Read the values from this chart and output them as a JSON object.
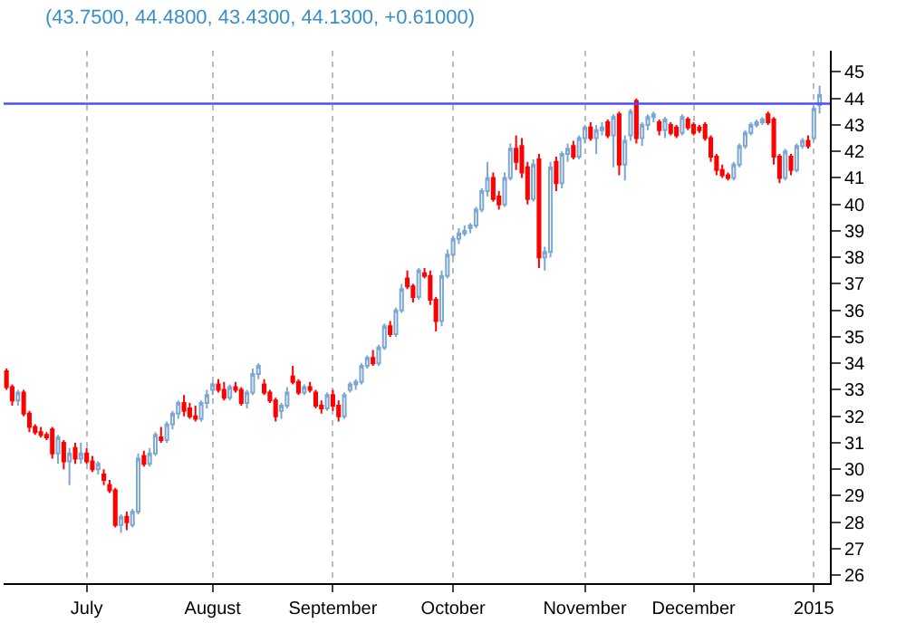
{
  "chart_data": {
    "type": "candlestick",
    "title": "(43.7500, 44.4800, 43.4300, 44.1300, +0.61000)",
    "categories": [
      null,
      null,
      null,
      null,
      null,
      null,
      null,
      null,
      null,
      null,
      null,
      null,
      null,
      null,
      "July",
      null,
      null,
      null,
      null,
      null,
      null,
      null,
      null,
      null,
      null,
      null,
      null,
      null,
      null,
      null,
      null,
      null,
      null,
      null,
      null,
      null,
      "August",
      null,
      null,
      null,
      null,
      null,
      null,
      null,
      null,
      null,
      null,
      null,
      null,
      null,
      null,
      null,
      null,
      null,
      null,
      null,
      null,
      "September",
      null,
      null,
      null,
      null,
      null,
      null,
      null,
      null,
      null,
      null,
      null,
      null,
      null,
      null,
      null,
      null,
      null,
      null,
      null,
      null,
      "October",
      null,
      null,
      null,
      null,
      null,
      null,
      null,
      null,
      null,
      null,
      null,
      null,
      null,
      null,
      null,
      null,
      null,
      null,
      null,
      null,
      null,
      null,
      "November",
      null,
      null,
      null,
      null,
      null,
      null,
      null,
      null,
      null,
      null,
      null,
      null,
      null,
      null,
      null,
      null,
      null,
      null,
      "December",
      null,
      null,
      null,
      null,
      null,
      null,
      null,
      null,
      null,
      null,
      null,
      null,
      null,
      null,
      null,
      null,
      null,
      null,
      null,
      null,
      "2015",
      null
    ],
    "ohlc": [
      [
        33.7,
        33.8,
        33.0,
        33.1
      ],
      [
        33.1,
        33.2,
        32.4,
        32.6
      ],
      [
        32.6,
        33.0,
        32.4,
        32.9
      ],
      [
        32.9,
        33.0,
        32.0,
        32.1
      ],
      [
        32.1,
        32.2,
        31.4,
        31.6
      ],
      [
        31.6,
        31.7,
        31.3,
        31.4
      ],
      [
        31.4,
        31.6,
        31.2,
        31.3
      ],
      [
        31.3,
        31.4,
        31.1,
        31.2
      ],
      [
        31.5,
        31.6,
        30.4,
        30.6
      ],
      [
        30.6,
        31.3,
        30.2,
        31.2
      ],
      [
        31.0,
        31.1,
        30.0,
        30.3
      ],
      [
        30.3,
        30.8,
        29.4,
        30.6
      ],
      [
        30.8,
        31.0,
        30.2,
        30.4
      ],
      [
        30.4,
        31.0,
        30.2,
        30.6
      ],
      [
        30.6,
        30.8,
        30.2,
        30.3
      ],
      [
        30.3,
        30.5,
        29.9,
        30.0
      ],
      [
        30.0,
        30.3,
        29.8,
        30.2
      ],
      [
        29.8,
        30.0,
        29.4,
        29.6
      ],
      [
        29.4,
        29.6,
        29.1,
        29.2
      ],
      [
        29.2,
        29.3,
        27.8,
        27.9
      ],
      [
        27.9,
        28.3,
        27.6,
        28.2
      ],
      [
        28.2,
        28.4,
        27.7,
        28.0
      ],
      [
        27.9,
        28.5,
        27.8,
        28.4
      ],
      [
        28.4,
        30.6,
        28.3,
        30.4
      ],
      [
        30.5,
        30.7,
        30.1,
        30.2
      ],
      [
        30.2,
        30.8,
        30.1,
        30.6
      ],
      [
        30.6,
        31.4,
        30.5,
        31.3
      ],
      [
        31.2,
        31.6,
        31.0,
        31.1
      ],
      [
        31.1,
        31.8,
        31.0,
        31.7
      ],
      [
        31.7,
        32.2,
        31.5,
        32.1
      ],
      [
        32.1,
        32.6,
        31.9,
        32.5
      ],
      [
        32.5,
        32.8,
        32.0,
        32.2
      ],
      [
        32.3,
        32.5,
        31.9,
        32.0
      ],
      [
        32.0,
        32.4,
        31.8,
        31.9
      ],
      [
        31.9,
        32.6,
        31.8,
        32.5
      ],
      [
        32.5,
        33.0,
        32.3,
        32.8
      ],
      [
        33.0,
        33.3,
        32.8,
        33.2
      ],
      [
        33.2,
        33.4,
        32.9,
        33.0
      ],
      [
        33.0,
        33.3,
        32.6,
        32.7
      ],
      [
        32.7,
        33.2,
        32.6,
        33.1
      ],
      [
        33.1,
        33.3,
        32.9,
        33.0
      ],
      [
        33.0,
        33.1,
        32.4,
        32.5
      ],
      [
        32.5,
        33.0,
        32.3,
        32.9
      ],
      [
        32.9,
        33.8,
        32.8,
        33.6
      ],
      [
        33.6,
        34.0,
        33.4,
        33.9
      ],
      [
        33.2,
        33.4,
        32.8,
        32.9
      ],
      [
        32.9,
        33.0,
        32.5,
        32.6
      ],
      [
        32.6,
        32.7,
        31.8,
        32.0
      ],
      [
        32.2,
        32.5,
        31.9,
        32.4
      ],
      [
        32.4,
        33.1,
        32.3,
        32.9
      ],
      [
        33.5,
        33.9,
        33.2,
        33.3
      ],
      [
        33.3,
        33.4,
        32.8,
        32.9
      ],
      [
        32.9,
        33.2,
        32.8,
        33.1
      ],
      [
        33.1,
        33.3,
        32.9,
        33.0
      ],
      [
        32.9,
        33.0,
        32.3,
        32.4
      ],
      [
        32.4,
        32.6,
        32.1,
        32.3
      ],
      [
        32.3,
        32.9,
        32.2,
        32.8
      ],
      [
        32.8,
        33.0,
        32.2,
        32.4
      ],
      [
        32.4,
        32.6,
        31.8,
        32.0
      ],
      [
        32.0,
        32.9,
        31.9,
        32.8
      ],
      [
        33.0,
        33.3,
        32.9,
        33.2
      ],
      [
        33.2,
        33.4,
        33.0,
        33.3
      ],
      [
        33.3,
        34.0,
        33.2,
        33.9
      ],
      [
        33.9,
        34.3,
        33.8,
        34.2
      ],
      [
        34.2,
        34.5,
        33.9,
        34.0
      ],
      [
        34.0,
        34.7,
        33.9,
        34.6
      ],
      [
        34.6,
        35.5,
        34.5,
        35.4
      ],
      [
        35.4,
        35.6,
        35.0,
        35.1
      ],
      [
        35.1,
        36.1,
        35.0,
        36.0
      ],
      [
        36.0,
        37.0,
        35.9,
        36.8
      ],
      [
        37.2,
        37.5,
        36.8,
        36.9
      ],
      [
        36.9,
        37.0,
        36.3,
        36.5
      ],
      [
        36.5,
        37.6,
        36.4,
        37.5
      ],
      [
        37.4,
        37.6,
        37.2,
        37.3
      ],
      [
        37.3,
        37.5,
        36.2,
        36.4
      ],
      [
        36.4,
        36.5,
        35.2,
        35.6
      ],
      [
        35.6,
        37.5,
        35.4,
        37.3
      ],
      [
        37.3,
        38.3,
        37.2,
        38.1
      ],
      [
        38.1,
        38.8,
        38.0,
        38.7
      ],
      [
        38.7,
        39.1,
        38.5,
        38.9
      ],
      [
        38.9,
        39.2,
        38.8,
        39.0
      ],
      [
        39.1,
        39.3,
        38.9,
        39.2
      ],
      [
        39.2,
        39.9,
        39.1,
        39.8
      ],
      [
        39.8,
        40.6,
        39.7,
        40.5
      ],
      [
        40.5,
        41.6,
        40.3,
        41.0
      ],
      [
        41.0,
        41.2,
        40.1,
        40.2
      ],
      [
        40.3,
        40.5,
        39.8,
        40.0
      ],
      [
        40.0,
        41.2,
        39.9,
        41.0
      ],
      [
        41.0,
        42.3,
        40.9,
        42.1
      ],
      [
        42.1,
        42.6,
        41.3,
        41.6
      ],
      [
        42.2,
        42.5,
        41.0,
        41.2
      ],
      [
        41.4,
        41.6,
        40.0,
        40.2
      ],
      [
        40.2,
        41.7,
        40.1,
        41.5
      ],
      [
        41.7,
        41.9,
        37.6,
        38.0
      ],
      [
        38.0,
        38.4,
        37.5,
        38.2
      ],
      [
        38.2,
        41.6,
        38.0,
        41.4
      ],
      [
        41.6,
        41.8,
        40.5,
        40.8
      ],
      [
        40.8,
        42.0,
        40.6,
        41.9
      ],
      [
        41.9,
        42.3,
        41.6,
        42.1
      ],
      [
        42.2,
        42.4,
        41.7,
        41.8
      ],
      [
        41.8,
        42.6,
        41.7,
        42.5
      ],
      [
        42.5,
        43.0,
        42.3,
        42.9
      ],
      [
        42.9,
        43.1,
        42.4,
        42.5
      ],
      [
        42.5,
        43.0,
        41.9,
        42.8
      ],
      [
        42.8,
        43.1,
        42.6,
        42.9
      ],
      [
        43.1,
        43.2,
        42.5,
        42.6
      ],
      [
        42.6,
        43.4,
        41.4,
        43.3
      ],
      [
        43.4,
        43.5,
        41.1,
        41.5
      ],
      [
        41.5,
        42.6,
        40.9,
        42.4
      ],
      [
        42.6,
        43.6,
        42.4,
        43.5
      ],
      [
        43.9,
        44.0,
        42.3,
        42.5
      ],
      [
        42.5,
        43.1,
        42.2,
        43.0
      ],
      [
        43.0,
        43.4,
        42.8,
        43.3
      ],
      [
        43.3,
        43.5,
        43.1,
        43.4
      ],
      [
        43.1,
        43.2,
        42.6,
        42.8
      ],
      [
        42.8,
        43.3,
        42.5,
        43.2
      ],
      [
        43.0,
        43.1,
        42.6,
        42.7
      ],
      [
        42.9,
        43.0,
        42.5,
        42.6
      ],
      [
        42.7,
        43.4,
        42.6,
        43.3
      ],
      [
        43.2,
        43.3,
        42.8,
        42.9
      ],
      [
        43.0,
        43.1,
        42.6,
        42.7
      ],
      [
        42.9,
        43.0,
        42.7,
        42.8
      ],
      [
        43.0,
        43.1,
        42.4,
        42.5
      ],
      [
        42.5,
        42.6,
        41.6,
        41.8
      ],
      [
        41.8,
        41.9,
        41.1,
        41.3
      ],
      [
        41.3,
        41.5,
        41.0,
        41.1
      ],
      [
        41.1,
        41.2,
        40.9,
        41.0
      ],
      [
        41.0,
        41.6,
        40.9,
        41.5
      ],
      [
        41.5,
        42.3,
        41.4,
        42.2
      ],
      [
        42.2,
        42.8,
        42.1,
        42.7
      ],
      [
        42.7,
        43.1,
        42.6,
        43.0
      ],
      [
        43.0,
        43.2,
        42.9,
        43.1
      ],
      [
        43.1,
        43.3,
        43.0,
        43.2
      ],
      [
        43.4,
        43.5,
        43.0,
        43.1
      ],
      [
        43.2,
        43.3,
        41.5,
        41.8
      ],
      [
        41.8,
        41.9,
        40.8,
        41.0
      ],
      [
        41.0,
        42.1,
        40.9,
        42.0
      ],
      [
        41.8,
        41.9,
        41.1,
        41.3
      ],
      [
        41.3,
        42.3,
        41.2,
        42.2
      ],
      [
        42.2,
        42.5,
        42.1,
        42.4
      ],
      [
        42.4,
        42.6,
        42.1,
        42.2
      ],
      [
        42.5,
        43.7,
        42.4,
        43.6
      ],
      [
        43.75,
        44.48,
        43.43,
        44.13
      ]
    ],
    "ylim": [
      25.7,
      45.8
    ],
    "yticks": [
      26,
      27,
      28,
      29,
      30,
      31,
      32,
      33,
      34,
      35,
      36,
      37,
      38,
      39,
      40,
      41,
      42,
      43,
      44,
      45
    ],
    "grid": "x",
    "ref_lines": [
      {
        "axis": "y",
        "value": 43.8,
        "color": "#4d4dff"
      }
    ]
  }
}
